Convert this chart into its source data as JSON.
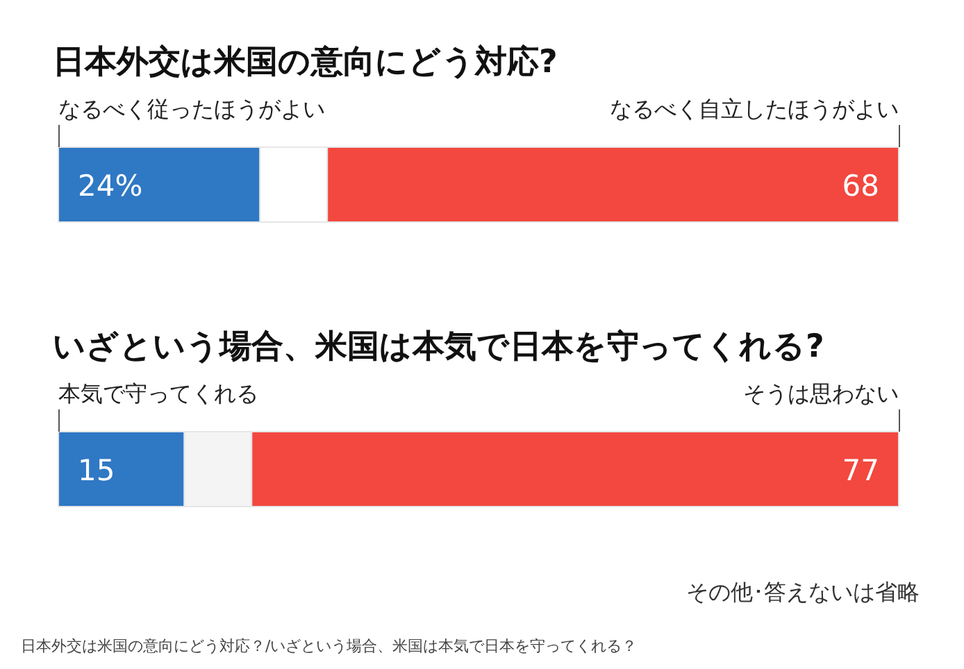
{
  "chart_data": [
    {
      "type": "bar",
      "orientation": "horizontal",
      "stacked": true,
      "title": "日本外交は米国の意向にどう対応?",
      "categories": [
        null
      ],
      "xlim": [
        0,
        100
      ],
      "tick_labels": false,
      "series": [
        {
          "name": "なるべく従ったほうがよい",
          "color": "#2f78c4",
          "values": [
            24
          ],
          "value_labels": [
            "24%"
          ]
        },
        {
          "color": "#ffffff",
          "values": [
            8
          ],
          "value_labels": [
            null
          ]
        },
        {
          "name": "なるべく自立したほうがよい",
          "color": "#f2483f",
          "values": [
            68
          ],
          "value_labels": [
            "68"
          ]
        }
      ]
    },
    {
      "type": "bar",
      "orientation": "horizontal",
      "stacked": true,
      "title": "いざという場合、米国は本気で日本を守ってくれる?",
      "categories": [
        null
      ],
      "xlim": [
        0,
        100
      ],
      "tick_labels": false,
      "series": [
        {
          "name": "本気で守ってくれる",
          "color": "#2f78c4",
          "values": [
            15
          ],
          "value_labels": [
            "15"
          ]
        },
        {
          "color": "#f4f4f4",
          "values": [
            8
          ],
          "value_labels": [
            null
          ]
        },
        {
          "name": "そうは思わない",
          "color": "#f2483f",
          "values": [
            77
          ],
          "value_labels": [
            "77"
          ]
        }
      ],
      "annotations": [
        "その他･答えないは省略",
        "日本外交は米国の意向にどう対応？/いざという場合、米国は本気で日本を守ってくれる？"
      ]
    }
  ]
}
